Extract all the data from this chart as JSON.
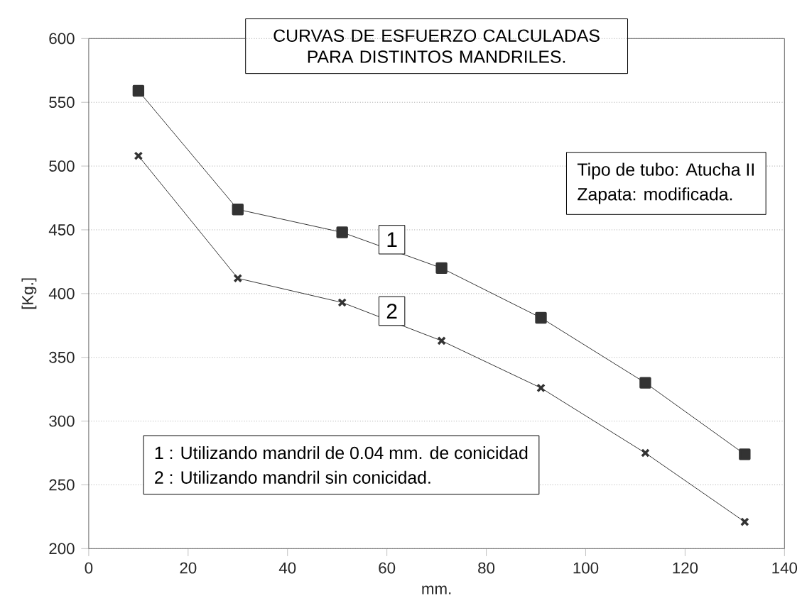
{
  "chart_data": {
    "type": "line",
    "title": "CURVAS DE ESFUERZO CALCULADAS PARA DISTINTOS MANDRILES.",
    "xlabel": "mm.",
    "ylabel": "[Kg.]",
    "x": [
      10,
      30,
      51,
      71,
      91,
      112,
      132
    ],
    "series": [
      {
        "name": "1",
        "color": "#333333",
        "marker": "square",
        "values": [
          559,
          466,
          448,
          420,
          381,
          330,
          274
        ]
      },
      {
        "name": "2",
        "color": "#333333",
        "marker": "cross",
        "values": [
          508,
          412,
          393,
          363,
          326,
          275,
          221
        ]
      }
    ],
    "xlim": [
      0,
      140
    ],
    "ylim": [
      200,
      600
    ],
    "xticks": [
      0,
      20,
      40,
      60,
      80,
      100,
      120,
      140
    ],
    "yticks": [
      200,
      250,
      300,
      350,
      400,
      450,
      500,
      550,
      600
    ],
    "grid": "y",
    "line_style": "solid",
    "annotations": [
      "Tipo de tubo: Atucha II",
      "Zapata: modificada.",
      "1 : Utilizando mandril de 0.04 mm. de conicidad",
      "2 : Utilizando mandril sin conicidad."
    ]
  }
}
